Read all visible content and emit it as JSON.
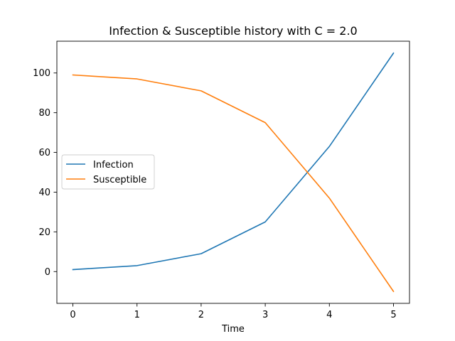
{
  "chart_data": {
    "type": "line",
    "title": "Infection & Susceptible history with C = 2.0",
    "xlabel": "Time",
    "ylabel": "",
    "x": [
      0,
      1,
      2,
      3,
      4,
      5
    ],
    "xticks": [
      0,
      1,
      2,
      3,
      4,
      5
    ],
    "yticks": [
      0,
      20,
      40,
      60,
      80,
      100
    ],
    "xlim": [
      -0.25,
      5.25
    ],
    "ylim": [
      -16,
      116
    ],
    "grid": false,
    "legend_position": "center-left",
    "series": [
      {
        "name": "Infection",
        "color": "#1f77b4",
        "values": [
          1,
          3,
          9,
          25,
          63,
          110
        ]
      },
      {
        "name": "Susceptible",
        "color": "#ff7f0e",
        "values": [
          99,
          97,
          91,
          75,
          37,
          -10
        ]
      }
    ]
  }
}
